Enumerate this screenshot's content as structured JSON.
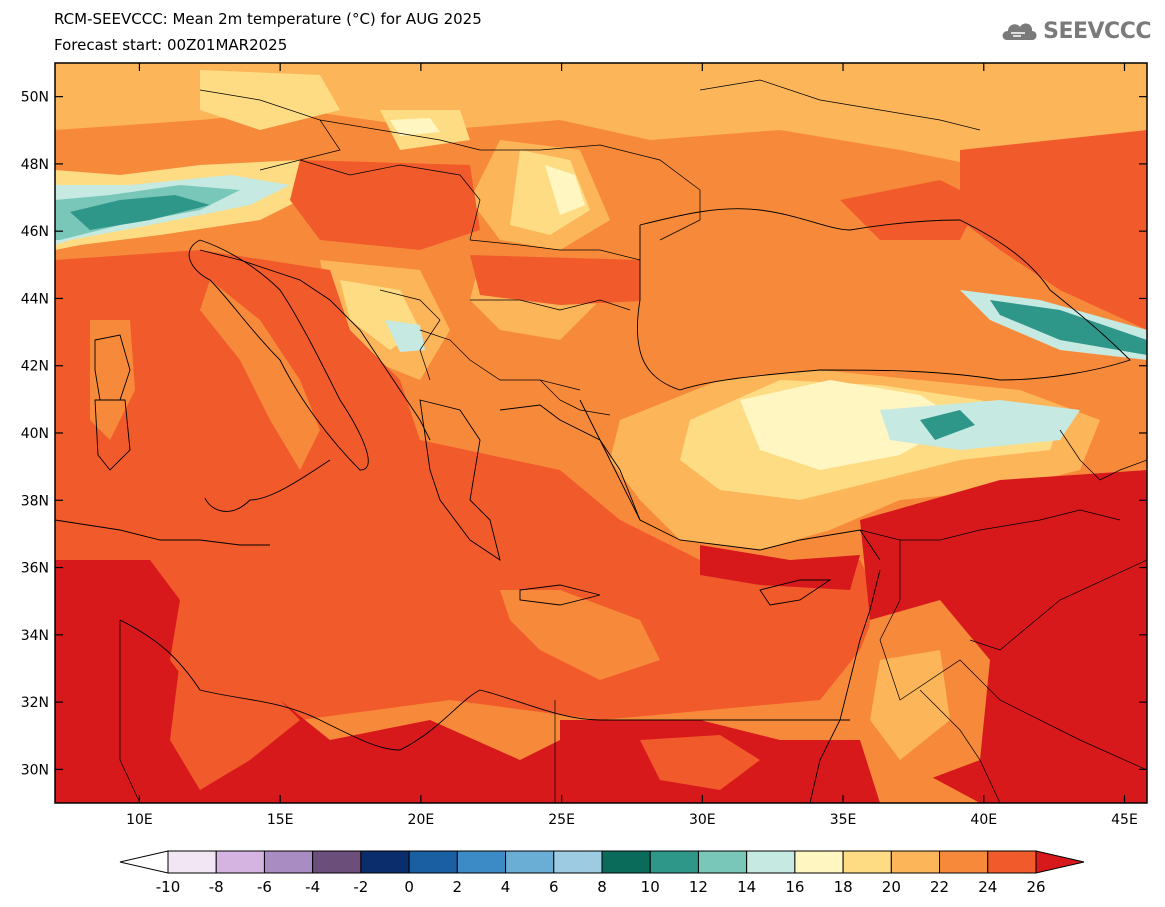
{
  "header": {
    "title": "RCM-SEEVCCC: Mean 2m temperature (°C) for AUG 2025",
    "subtitle": "Forecast start: 00Z01MAR2025"
  },
  "logo": {
    "text": "SEEVCCC",
    "icon": "cloud-logo-icon",
    "color": "#7a7a7a"
  },
  "map": {
    "projection": "lat-lon",
    "lon_range": [
      7.0,
      45.8
    ],
    "lat_range": [
      29.0,
      51.0
    ],
    "lat_ticks": [
      {
        "value": 30,
        "label": "30N"
      },
      {
        "value": 32,
        "label": "32N"
      },
      {
        "value": 34,
        "label": "34N"
      },
      {
        "value": 36,
        "label": "36N"
      },
      {
        "value": 38,
        "label": "38N"
      },
      {
        "value": 40,
        "label": "40N"
      },
      {
        "value": 42,
        "label": "42N"
      },
      {
        "value": 44,
        "label": "44N"
      },
      {
        "value": 46,
        "label": "46N"
      },
      {
        "value": 48,
        "label": "48N"
      },
      {
        "value": 50,
        "label": "50N"
      }
    ],
    "lon_ticks": [
      {
        "value": 10,
        "label": "10E"
      },
      {
        "value": 15,
        "label": "15E"
      },
      {
        "value": 20,
        "label": "20E"
      },
      {
        "value": 25,
        "label": "25E"
      },
      {
        "value": 30,
        "label": "30E"
      },
      {
        "value": 35,
        "label": "35E"
      },
      {
        "value": 40,
        "label": "40E"
      },
      {
        "value": 45,
        "label": "45E"
      }
    ]
  },
  "colorbar": {
    "labels": [
      "-10",
      "-8",
      "-6",
      "-4",
      "-2",
      "0",
      "2",
      "4",
      "6",
      "8",
      "10",
      "12",
      "14",
      "16",
      "18",
      "20",
      "22",
      "24",
      "26"
    ],
    "low_end_color": "#ffffff",
    "high_end_color": "#d7191c",
    "colors": [
      "#f2e6f5",
      "#d6b4e2",
      "#a98cc2",
      "#6b4e7a",
      "#0b2d6b",
      "#1b5fa3",
      "#3c8ac6",
      "#6aaed6",
      "#9ccbe2",
      "#0b6b5b",
      "#2f978a",
      "#79c7b9",
      "#c6e9e2",
      "#fff6c2",
      "#fddc84",
      "#fdb55a",
      "#f78a3a",
      "#f15a2a"
    ]
  },
  "field": {
    "legend_unit": "°C",
    "regions": [
      {
        "name": "background-warm",
        "color": "#f78a3a"
      },
      {
        "name": "sea-and-lowlands",
        "color": "#f15a2a"
      },
      {
        "name": "hot-deserts",
        "color": "#d7191c"
      },
      {
        "name": "alps-cool",
        "color": "#2f978a"
      },
      {
        "name": "anatolia-plateau",
        "color": "#fdb55a"
      },
      {
        "name": "caucasus-cool",
        "color": "#2f978a"
      }
    ]
  }
}
